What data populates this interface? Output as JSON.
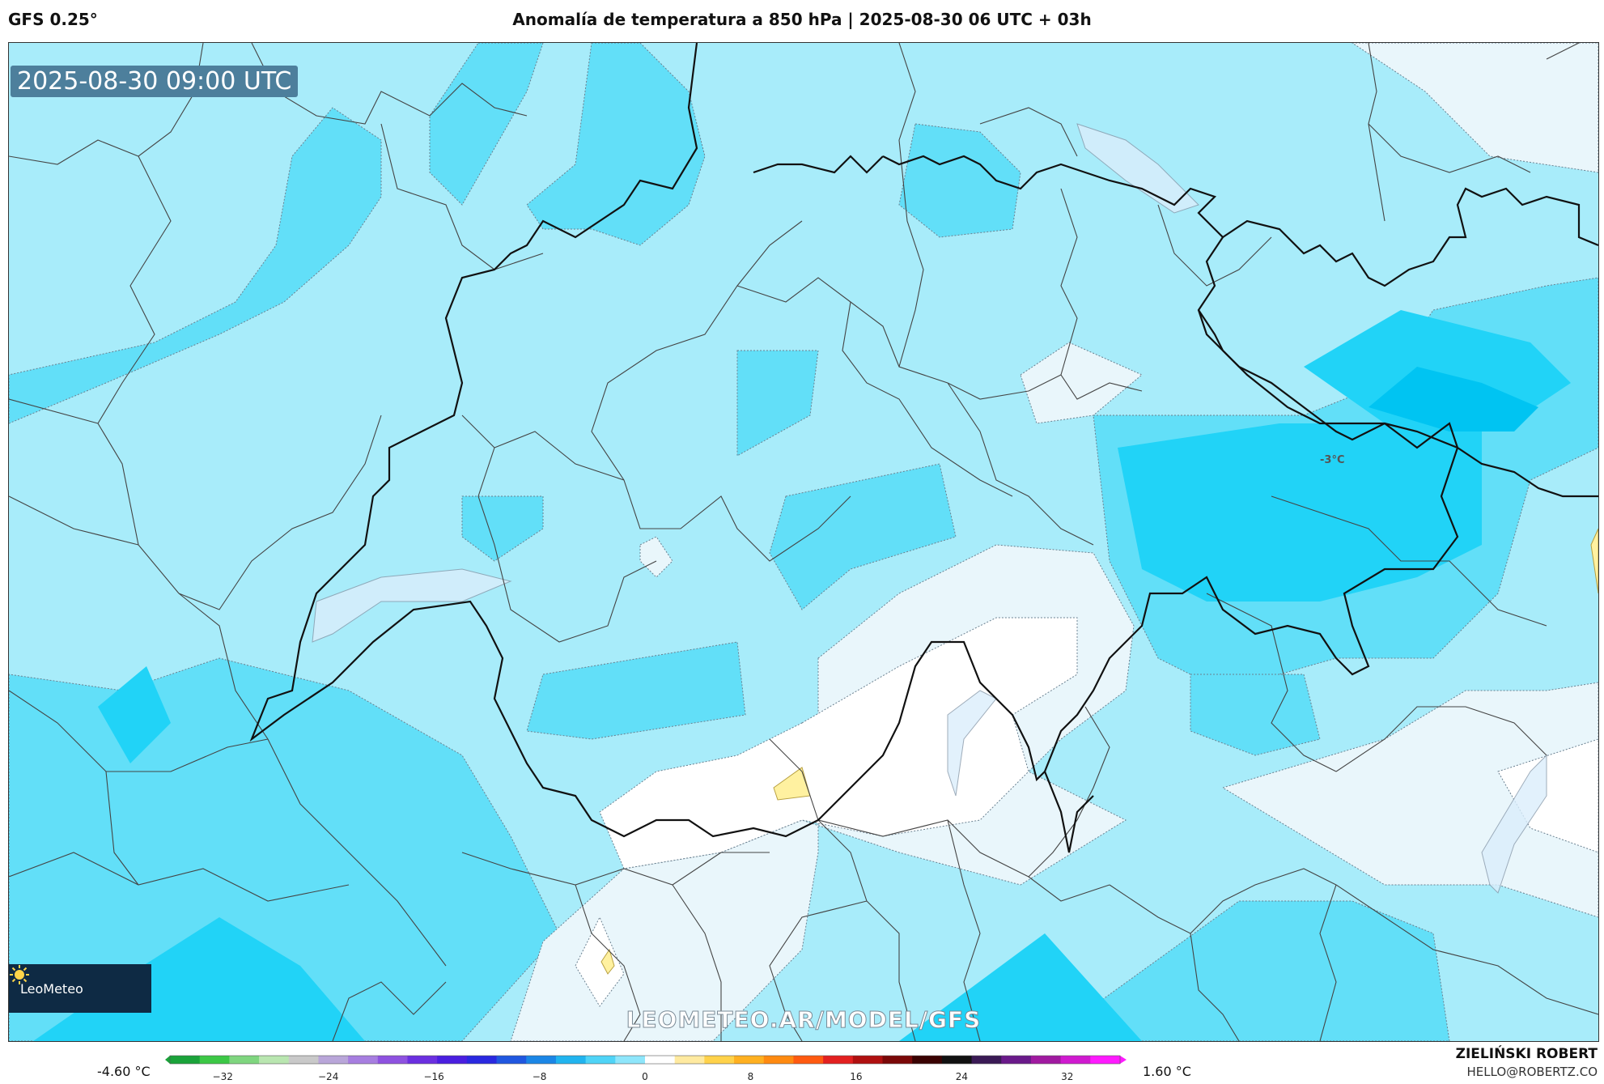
{
  "header": {
    "model": "GFS 0.25°",
    "title": "Anomalía de temperatura a 850 hPa | 2025-08-30 06 UTC + 03h"
  },
  "map": {
    "timestamp": "2025-08-30 09:00 UTC",
    "logo_text": "LeoMeteo",
    "logo_icon": "sun-icon",
    "watermark": "LEOMETEO.AR/MODEL/GFS",
    "contour_label": "-3°C"
  },
  "colorbar": {
    "min_label": "-4.60 °C",
    "max_label": "1.60 °C",
    "ticks": [
      "−32",
      "−24",
      "−16",
      "−8",
      "0",
      "8",
      "16",
      "24",
      "32"
    ],
    "tick_values": [
      -32,
      -24,
      -16,
      -8,
      0,
      8,
      16,
      24,
      32
    ],
    "range": [
      -36,
      36
    ],
    "colors": [
      "#1aa33a",
      "#3cc846",
      "#7fd67f",
      "#b9e6b0",
      "#c9c9c9",
      "#b9a6d9",
      "#a77ee0",
      "#8e52e0",
      "#6b2fe0",
      "#4a1ee0",
      "#2a28e0",
      "#2057e0",
      "#1b86e6",
      "#21b4ef",
      "#4fd4f7",
      "#8ee6fb",
      "#ffffff",
      "#ffeaa0",
      "#ffd24a",
      "#ffb020",
      "#ff8a10",
      "#ff5a10",
      "#e32020",
      "#b01010",
      "#7a0808",
      "#3a0202",
      "#111111",
      "#3a1a55",
      "#6a1a8a",
      "#a01aa0",
      "#d01ad0",
      "#ff1aff"
    ]
  },
  "credits": {
    "name": "ZIELIŃSKI ROBERT",
    "email": "HELLO@ROBERTZ.CO"
  },
  "colors": {
    "base": "#a8ecfa",
    "mid": "#62dff8",
    "deep": "#21d3f7",
    "deeper": "#00c4f2",
    "near_zero": "#e9f6fb",
    "white": "#ffffff",
    "warm": "#fff1a0"
  }
}
